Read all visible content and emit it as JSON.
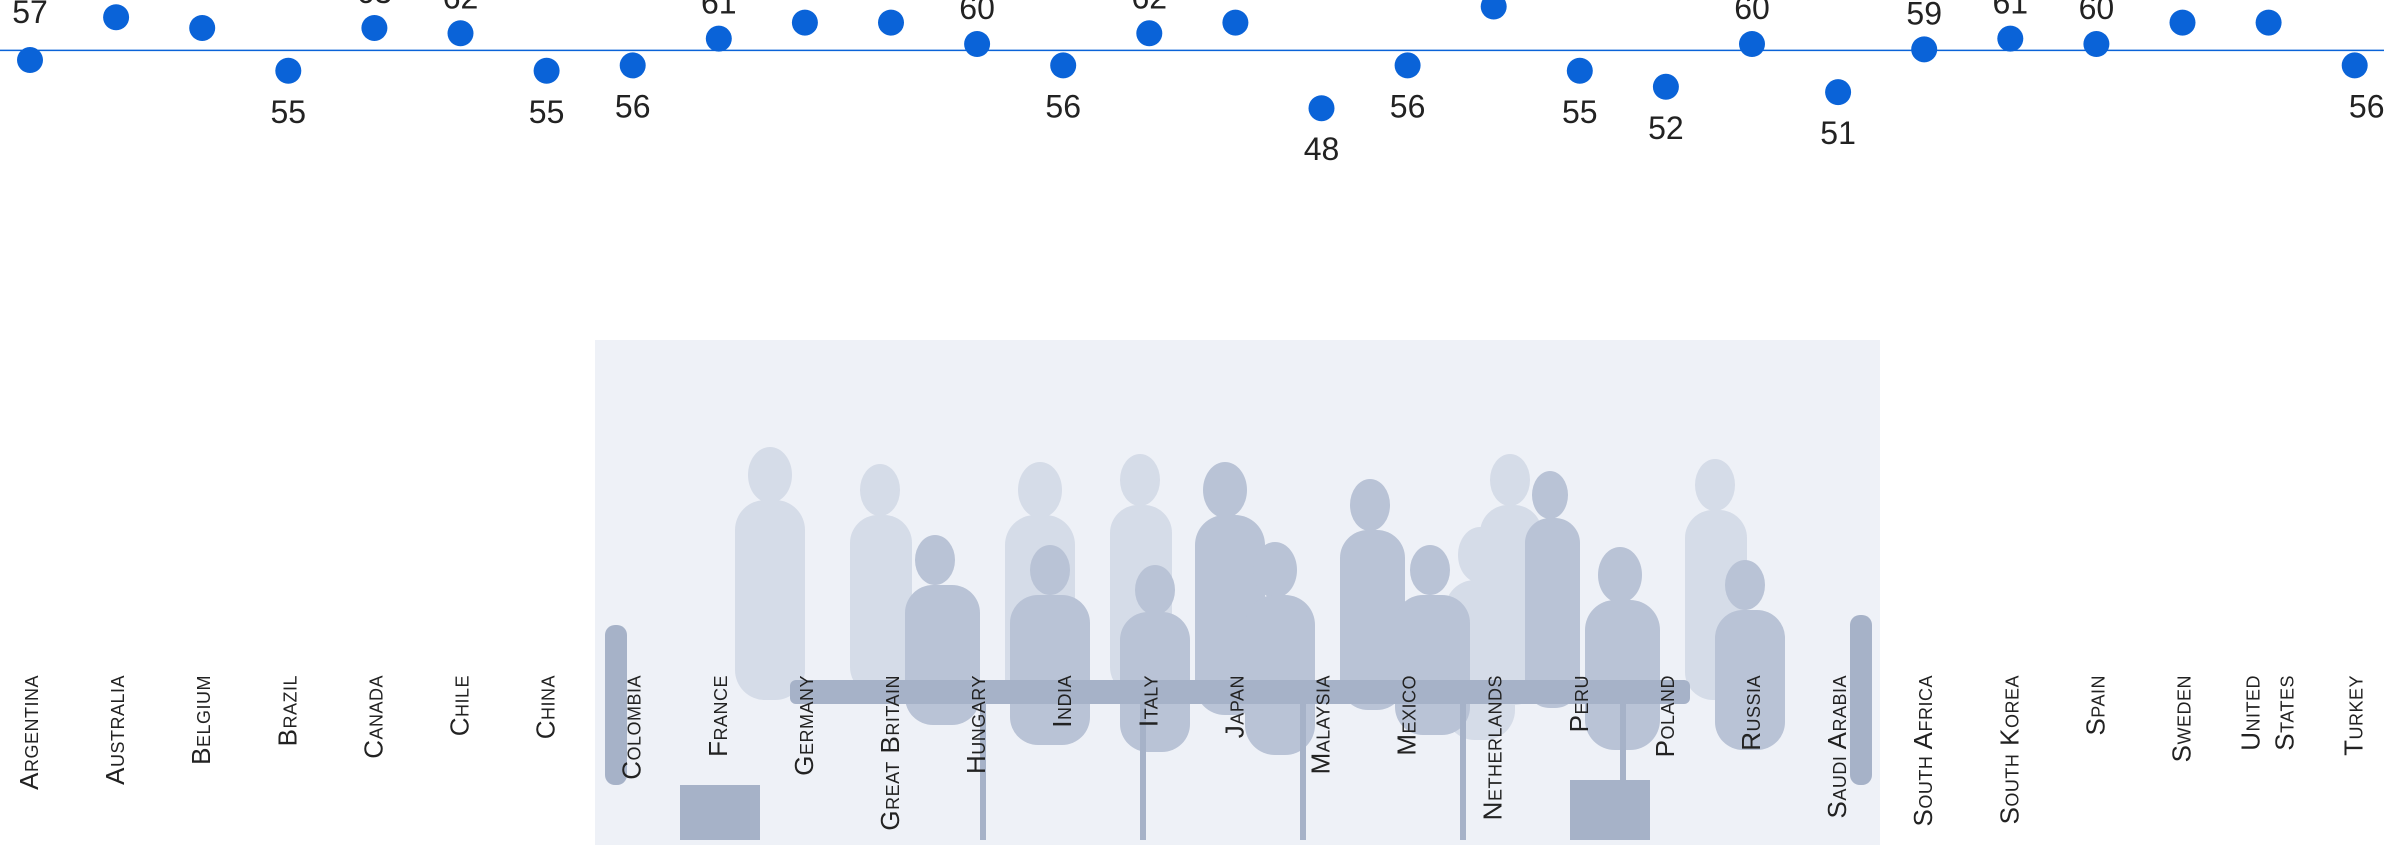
{
  "chart_data": {
    "type": "scatter",
    "categories": [
      "Argentina",
      "Australia",
      "Belgium",
      "Brazil",
      "Canada",
      "Chile",
      "China",
      "Colombia",
      "France",
      "Germany",
      "Great Britain",
      "Hungary",
      "India",
      "Italy",
      "Japan",
      "Malaysia",
      "Mexico",
      "Netherlands",
      "Peru",
      "Poland",
      "Russia",
      "Saudi Arabia",
      "South Africa",
      "South Korea",
      "Spain",
      "Sweden",
      "United States",
      "Turkey"
    ],
    "values": [
      57,
      65,
      63,
      55,
      63,
      62,
      55,
      56,
      61,
      64,
      64,
      60,
      56,
      62,
      64,
      48,
      56,
      67,
      55,
      52,
      60,
      51,
      59,
      61,
      60,
      64,
      64,
      56
    ],
    "reference_line": 58.8,
    "series": [
      {
        "values": [
          57,
          65,
          63,
          55,
          63,
          62,
          55,
          56,
          61,
          64,
          64,
          60,
          56,
          62,
          64,
          48,
          56,
          67,
          55,
          52,
          60,
          51,
          59,
          61,
          60,
          64,
          64,
          56
        ]
      }
    ],
    "ylim": [
      46,
      69
    ],
    "colors": {
      "points": "#0a63d8",
      "reference_line": "#0a63d8",
      "labels": "#222222"
    },
    "grid": false,
    "legend": "none",
    "background_image": "business-meeting-silhouettes"
  }
}
